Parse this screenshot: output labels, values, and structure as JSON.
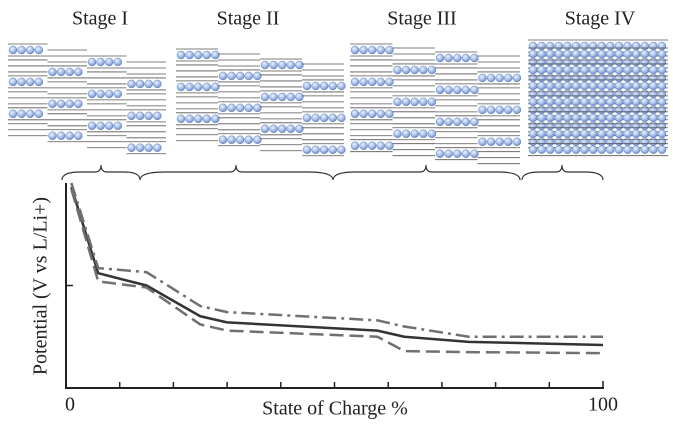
{
  "chart_data": {
    "type": "line",
    "stages": [
      "Stage I",
      "Stage II",
      "Stage III",
      "Stage IV"
    ],
    "xlabel": "State of Charge %",
    "ylabel": "Potential (V  vs L/Li+)",
    "x": [
      1,
      6,
      15,
      25,
      30,
      58,
      63,
      75,
      100
    ],
    "series": [
      {
        "color": "#333333",
        "dash": "solid",
        "values": [
          0.98,
          0.56,
          0.5,
          0.35,
          0.32,
          0.28,
          0.25,
          0.225,
          0.21
        ]
      },
      {
        "color": "#707070",
        "dash": "dashdot",
        "values": [
          1.0,
          0.585,
          0.565,
          0.4,
          0.37,
          0.33,
          0.3,
          0.25,
          0.25
        ]
      },
      {
        "color": "#707070",
        "dash": "dashed",
        "values": [
          0.97,
          0.52,
          0.49,
          0.31,
          0.28,
          0.25,
          0.18,
          0.175,
          0.17
        ]
      }
    ],
    "xlim": [
      0,
      100
    ],
    "xticks": [
      0,
      100
    ],
    "xminor": [
      10,
      20,
      30,
      40,
      50,
      60,
      70,
      80,
      90
    ],
    "ylim": [
      0,
      1
    ],
    "yminor": [
      0.5
    ]
  }
}
